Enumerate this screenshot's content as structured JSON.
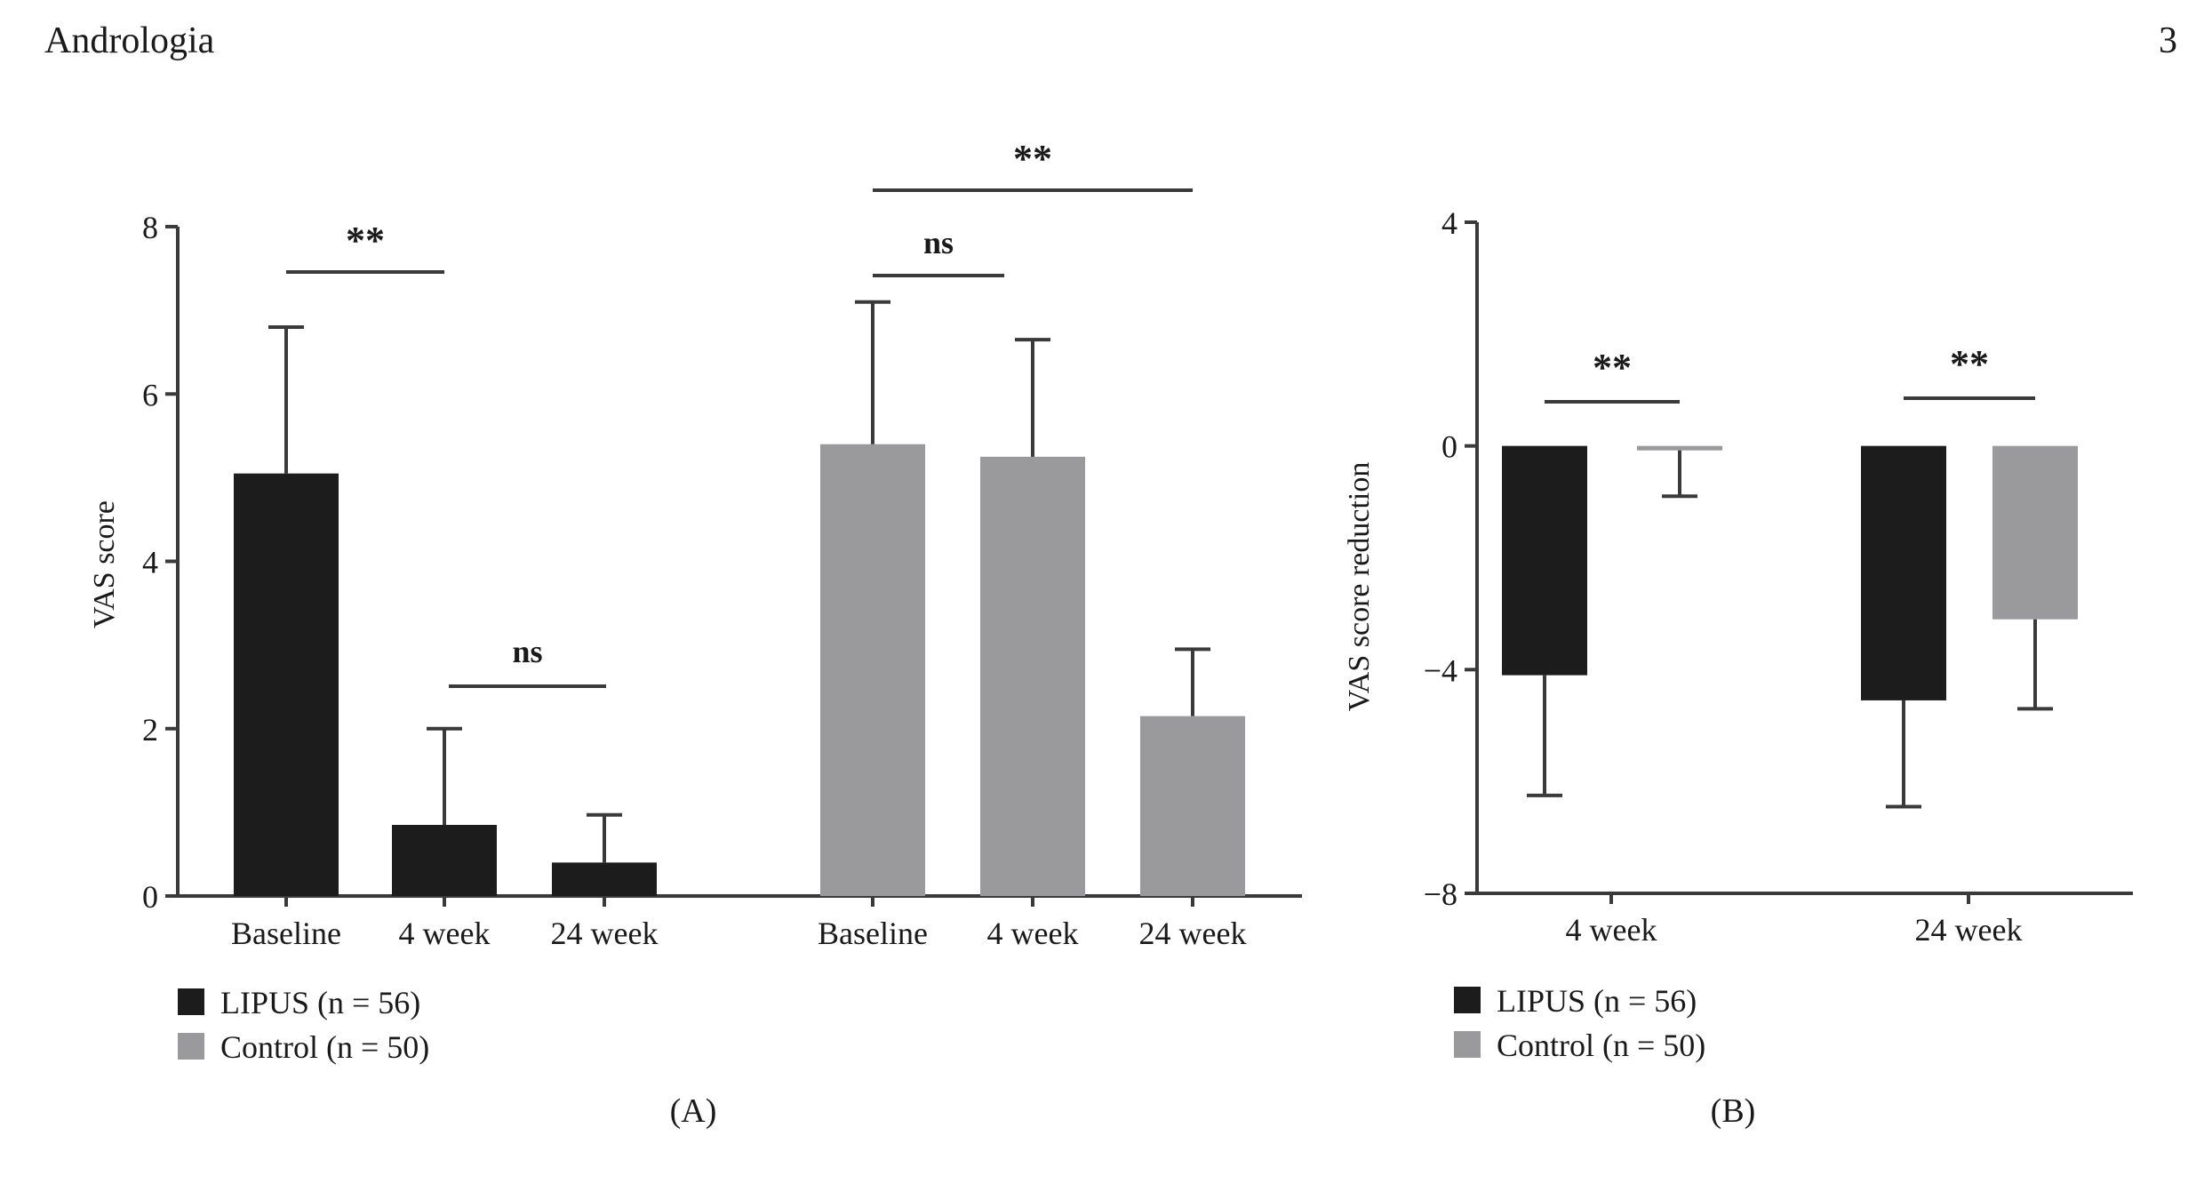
{
  "header": {
    "journal": "Andrologia",
    "page_number": "3"
  },
  "colors": {
    "lipus": "#1c1c1c",
    "control": "#9a9a9c",
    "axis": "#3a3a3a"
  },
  "chart_data": [
    {
      "panel_label": "(A)",
      "type": "bar",
      "ylabel": "VAS score",
      "ylim": [
        0,
        8
      ],
      "yticks": [
        "0",
        "2",
        "4",
        "6",
        "8"
      ],
      "groups": [
        {
          "series": "LIPUS (n = 56)",
          "categories": [
            "Baseline",
            "4 week",
            "24 week"
          ],
          "values": [
            5.05,
            0.85,
            0.4
          ],
          "error_upper": [
            6.8,
            2.0,
            0.97
          ]
        },
        {
          "series": "Control (n = 50)",
          "categories": [
            "Baseline",
            "4 week",
            "24 week"
          ],
          "values": [
            5.4,
            5.25,
            2.15
          ],
          "error_upper": [
            7.1,
            6.65,
            2.95
          ]
        }
      ],
      "significance": [
        {
          "label": "**"
        },
        {
          "label": "ns"
        },
        {
          "label": "ns"
        },
        {
          "label": "**"
        }
      ],
      "legend": [
        "LIPUS (n = 56)",
        "Control (n = 50)"
      ]
    },
    {
      "panel_label": "(B)",
      "type": "bar",
      "ylabel": "VAS score reduction",
      "ylim": [
        -8,
        4
      ],
      "yticks": [
        "4",
        "0",
        "−4",
        "−8"
      ],
      "categories": [
        "4 week",
        "24 week"
      ],
      "series": [
        {
          "name": "LIPUS (n = 56)",
          "values": [
            -4.1,
            -4.55
          ],
          "error_lower": [
            -6.25,
            -6.45
          ]
        },
        {
          "name": "Control (n = 50)",
          "values": [
            -0.08,
            -3.1
          ],
          "error_lower": [
            -0.9,
            -4.7
          ]
        }
      ],
      "significance": [
        {
          "label": "**"
        },
        {
          "label": "**"
        }
      ],
      "legend": [
        "LIPUS (n = 56)",
        "Control (n = 50)"
      ]
    }
  ]
}
